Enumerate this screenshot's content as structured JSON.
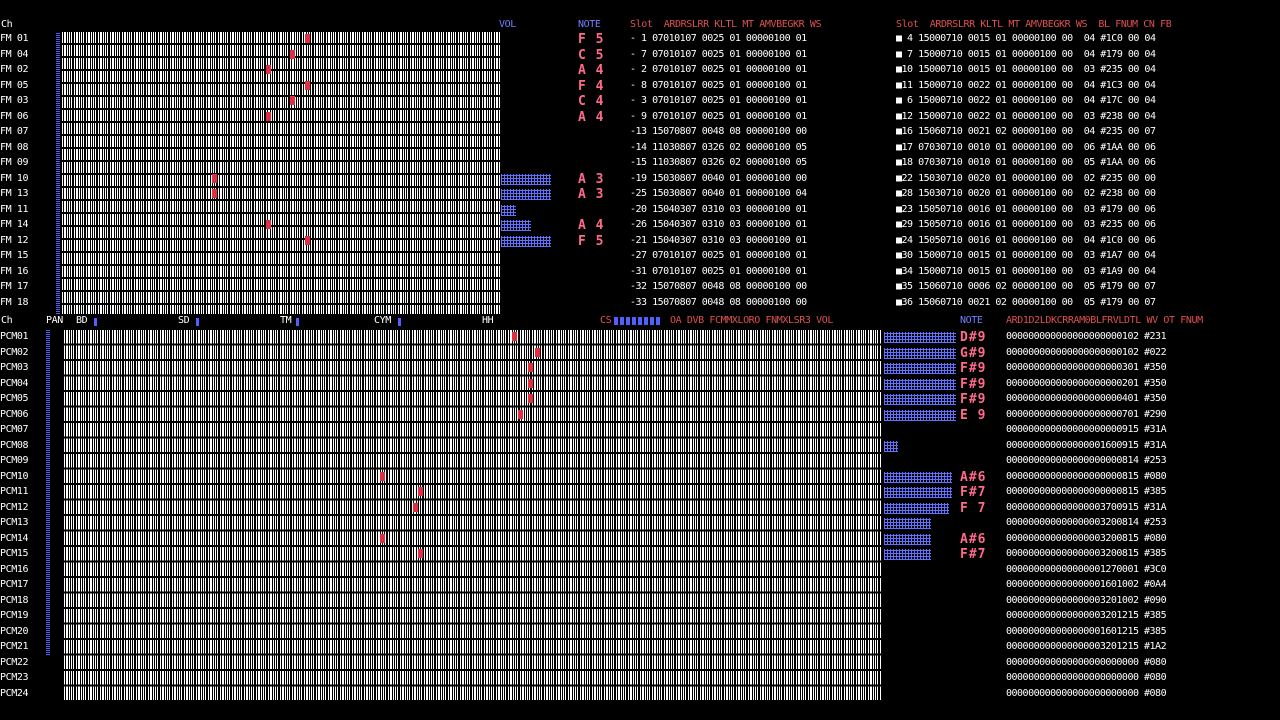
{
  "fm": {
    "ch_header": "Ch",
    "vol_header": "VOL",
    "note_header": "NOTE",
    "channels": [
      "FM 01",
      "FM 04",
      "FM 02",
      "FM 05",
      "FM 03",
      "FM 06",
      "FM 07",
      "FM 08",
      "FM 09",
      "FM 10",
      "FM 13",
      "FM 11",
      "FM 14",
      "FM 12",
      "FM 15",
      "FM 16",
      "FM 17",
      "FM 18"
    ],
    "notes": [
      {
        "row": 0,
        "text": "F 5"
      },
      {
        "row": 1,
        "text": "C 5"
      },
      {
        "row": 2,
        "text": "A 4"
      },
      {
        "row": 3,
        "text": "F 4"
      },
      {
        "row": 4,
        "text": "C 4"
      },
      {
        "row": 5,
        "text": "A 4"
      },
      {
        "row": 9,
        "text": "A 3"
      },
      {
        "row": 10,
        "text": "A 3"
      },
      {
        "row": 12,
        "text": "A 4"
      },
      {
        "row": 13,
        "text": "F 5"
      }
    ],
    "vol_levels": [
      0,
      0,
      0,
      0,
      0,
      0,
      0,
      0,
      0,
      0.5,
      0.5,
      0.15,
      0.3,
      0.5,
      0,
      0,
      0,
      0
    ],
    "slot_header_left": "Slot  ARDRSLRR KLTL MT AMVBEGKR WS",
    "slot_header_right": "Slot  ARDRSLRR KLTL MT AMVBEGKR WS  BL FNUM CN FB",
    "slots_left": [
      "- 1 07010107 0025 01 00000100 01",
      "- 7 07010107 0025 01 00000100 01",
      "- 2 07010107 0025 01 00000100 01",
      "- 8 07010107 0025 01 00000100 01",
      "- 3 07010107 0025 01 00000100 01",
      "- 9 07010107 0025 01 00000100 01",
      "-13 15070807 0048 08 00000100 00",
      "-14 11030807 0326 02 00000100 05",
      "-15 11030807 0326 02 00000100 05",
      "-19 15030807 0040 01 00000100 00",
      "-25 15030807 0040 01 00000100 04",
      "-20 15040307 0310 03 00000100 01",
      "-26 15040307 0310 03 00000100 01",
      "-21 15040307 0310 03 00000100 01",
      "-27 07010107 0025 01 00000100 01",
      "-31 07010107 0025 01 00000100 01",
      "-32 15070807 0048 08 00000100 00",
      "-33 15070807 0048 08 00000100 00"
    ],
    "slots_right": [
      "■ 4 15000710 0015 01 00000100 00  04 #1C0 00 04",
      "■ 7 15000710 0015 01 00000100 00  04 #179 00 04",
      "■10 15000710 0015 01 00000100 00  03 #235 00 04",
      "■11 15000710 0022 01 00000100 00  04 #1C3 00 04",
      "■ 6 15000710 0022 01 00000100 00  04 #17C 00 04",
      "■12 15000710 0022 01 00000100 00  03 #238 00 04",
      "■16 15060710 0021 02 00000100 00  04 #235 00 07",
      "■17 07030710 0010 01 00000100 00  06 #1AA 00 06",
      "■18 07030710 0010 01 00000100 00  05 #1AA 00 06",
      "■22 15030710 0020 01 00000100 00  02 #235 00 00",
      "■28 15030710 0020 01 00000100 00  02 #238 00 00",
      "■23 15050710 0016 01 00000100 00  03 #179 00 06",
      "■29 15050710 0016 01 00000100 00  03 #235 00 06",
      "■24 15050710 0016 01 00000100 00  04 #1C0 00 06",
      "■30 15000710 0015 01 00000100 00  03 #1A7 00 04",
      "■34 15000710 0015 01 00000100 00  03 #1A9 00 04",
      "■35 15060710 0006 02 00000100 00  05 #179 00 07",
      "■36 15060710 0021 02 00000100 00  05 #179 00 07"
    ]
  },
  "rhythm": {
    "ch_label": "Ch",
    "items": [
      "PAN",
      "BD",
      "SD",
      "TM",
      "CYM",
      "HH"
    ],
    "cs_label": "CS",
    "right_labels": "OA DVB FCMMXLORO FNMXLSR3 VOL",
    "note_header": "NOTE",
    "pcm_header": "ARD1D2LDKCRRAM0BLFRVLDTL WV OT FNUM"
  },
  "pcm": {
    "channels": [
      "PCM01",
      "PCM02",
      "PCM03",
      "PCM04",
      "PCM05",
      "PCM06",
      "PCM07",
      "PCM08",
      "PCM09",
      "PCM10",
      "PCM11",
      "PCM12",
      "PCM13",
      "PCM14",
      "PCM15",
      "PCM16",
      "PCM17",
      "PCM18",
      "PCM19",
      "PCM20",
      "PCM21",
      "PCM22",
      "PCM23",
      "PCM24"
    ],
    "notes": [
      {
        "row": 0,
        "text": "D#9"
      },
      {
        "row": 1,
        "text": "G#9"
      },
      {
        "row": 2,
        "text": "F#9"
      },
      {
        "row": 3,
        "text": "F#9"
      },
      {
        "row": 4,
        "text": "F#9"
      },
      {
        "row": 5,
        "text": "E 9"
      },
      {
        "row": 9,
        "text": "A#6"
      },
      {
        "row": 10,
        "text": "F#7"
      },
      {
        "row": 11,
        "text": "F 7"
      },
      {
        "row": 13,
        "text": "A#6"
      },
      {
        "row": 14,
        "text": "F#7"
      }
    ],
    "vol_levels": [
      1,
      1,
      1,
      1,
      1,
      1,
      0,
      0.2,
      0,
      0.95,
      0.95,
      0.9,
      0.65,
      0.65,
      0.65,
      0,
      0,
      0,
      0,
      0,
      0,
      0,
      0,
      0
    ],
    "params": [
      "000000000000000000000102 #231",
      "000000000000000000000102 #022",
      "000000000000000000000301 #350",
      "000000000000000000000201 #350",
      "000000000000000000000401 #350",
      "000000000000000000000701 #290",
      "000000000000000000000915 #31A",
      "000000000000000001600915 #31A",
      "000000000000000000000814 #253",
      "000000000000000000000815 #080",
      "000000000000000000000815 #385",
      "000000000000000003700915 #31A",
      "000000000000000003200814 #253",
      "000000000000000003200815 #080",
      "000000000000000003200815 #385",
      "000000000000000001270001 #3C0",
      "000000000000000001601002 #0A4",
      "000000000000000003201002 #090",
      "000000000000000003201215 #385",
      "000000000000000001601215 #385",
      "000000000000000003201215 #1A2",
      "000000000000000000000000 #080",
      "000000000000000000000000 #080",
      "000000000000000000000000 #080"
    ]
  }
}
